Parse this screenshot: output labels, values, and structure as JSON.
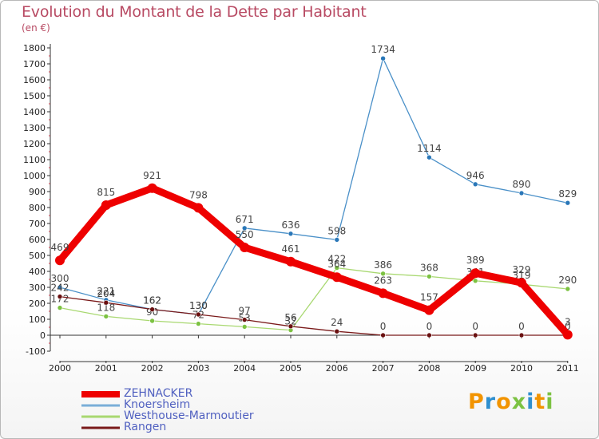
{
  "title": "Evolution du Montant de la Dette par Habitant",
  "unit_label": "(en €)",
  "logo": {
    "text": "Proxiti",
    "letter_colors": [
      "#f29400",
      "#2f8fcf",
      "#f29400",
      "#7cc242",
      "#2f8fcf",
      "#f29400",
      "#7cc242"
    ]
  },
  "chart_data": {
    "type": "line",
    "title": "Evolution du Montant de la Dette par Habitant",
    "ylabel": "(en €)",
    "xlabel": "",
    "x": [
      "2000",
      "2001",
      "2002",
      "2003",
      "2004",
      "2005",
      "2006",
      "2007",
      "2008",
      "2009",
      "2010",
      "2011"
    ],
    "ylim": [
      -100,
      1800
    ],
    "yticks": [
      -100,
      0,
      100,
      200,
      300,
      400,
      500,
      600,
      700,
      800,
      900,
      1000,
      1100,
      1200,
      1300,
      1400,
      1500,
      1600,
      1700,
      1800
    ],
    "grid": false,
    "legend_position": "bottom-left",
    "series": [
      {
        "name": "Knoersheim",
        "color": "#4a90c8",
        "marker_color": "#2a77b8",
        "values": [
          300,
          221,
          162,
          130,
          671,
          636,
          598,
          1734,
          1114,
          946,
          890,
          829
        ],
        "labels": [
          "300",
          "221",
          "162",
          "130",
          "671",
          "636",
          "598",
          "1734",
          "1114",
          "946",
          "890",
          "829"
        ]
      },
      {
        "name": "Westhouse-Marmoutier",
        "color": "#a8d870",
        "marker_color": "#7cc242",
        "values": [
          172,
          118,
          90,
          72,
          53,
          32,
          422,
          386,
          368,
          341,
          319,
          290
        ],
        "labels": [
          "172",
          "118",
          "90",
          "72",
          "53",
          "32",
          "422",
          "386",
          "368",
          "341",
          "319",
          "290"
        ]
      },
      {
        "name": "Rangen",
        "color": "#7a1a1a",
        "marker_color": "#6a1010",
        "values": [
          242,
          204,
          162,
          130,
          97,
          56,
          24,
          0,
          0,
          0,
          0,
          0
        ],
        "labels": [
          "242",
          "204",
          "162",
          "130",
          "97",
          "56",
          "24",
          "0",
          "0",
          "0",
          "0",
          "0"
        ]
      },
      {
        "name": "ZEHNACKER",
        "color": "#ee0000",
        "marker_color": "#ee0000",
        "values": [
          469,
          815,
          921,
          798,
          550,
          461,
          364,
          263,
          157,
          389,
          329,
          3
        ],
        "labels": [
          "469",
          "815",
          "921",
          "798",
          "550",
          "461",
          "364",
          "263",
          "157",
          "389",
          "329",
          "3"
        ]
      }
    ]
  },
  "legend": [
    {
      "name": "ZEHNACKER",
      "color": "#ee0000",
      "text_color": "#5060c0"
    },
    {
      "name": "Knoersheim",
      "color": "#7aaed8",
      "text_color": "#5060c0"
    },
    {
      "name": "Westhouse-Marmoutier",
      "color": "#a8d870",
      "text_color": "#5060c0"
    },
    {
      "name": "Rangen",
      "color": "#7a1a1a",
      "text_color": "#5060c0"
    }
  ]
}
